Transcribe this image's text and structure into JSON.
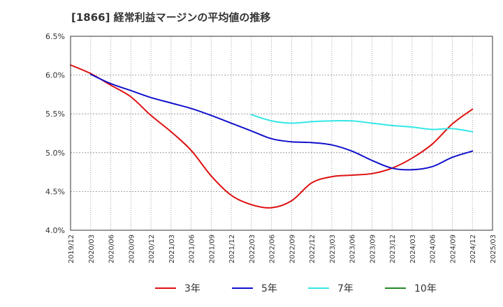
{
  "chart_data": {
    "type": "line",
    "title": "[1866]  経常利益マージンの平均値の推移",
    "xlabel": "",
    "ylabel": "",
    "ylim": [
      4.0,
      6.5
    ],
    "y_ticks": [
      "6.5%",
      "6.0%",
      "5.5%",
      "5.0%",
      "4.5%",
      "4.0%"
    ],
    "x_ticks": [
      "2019/12",
      "2020/03",
      "2020/06",
      "2020/09",
      "2020/12",
      "2021/03",
      "2021/06",
      "2021/09",
      "2021/12",
      "2022/03",
      "2022/06",
      "2022/09",
      "2022/12",
      "2023/03",
      "2023/06",
      "2023/09",
      "2023/12",
      "2024/03",
      "2024/06",
      "2024/09",
      "2024/12",
      "2025/03"
    ],
    "grid": true,
    "legend_position": "bottom",
    "series": [
      {
        "name": "3年",
        "color": "#dd1111",
        "points": [
          [
            "2019/12",
            6.13
          ],
          [
            "2020/03",
            6.02
          ],
          [
            "2020/06",
            5.87
          ],
          [
            "2020/09",
            5.72
          ],
          [
            "2020/12",
            5.48
          ],
          [
            "2021/03",
            5.27
          ],
          [
            "2021/06",
            5.03
          ],
          [
            "2021/09",
            4.7
          ],
          [
            "2021/12",
            4.45
          ],
          [
            "2022/03",
            4.33
          ],
          [
            "2022/06",
            4.29
          ],
          [
            "2022/09",
            4.38
          ],
          [
            "2022/12",
            4.61
          ],
          [
            "2023/03",
            4.69
          ],
          [
            "2023/06",
            4.71
          ],
          [
            "2023/09",
            4.73
          ],
          [
            "2023/12",
            4.8
          ],
          [
            "2024/03",
            4.93
          ],
          [
            "2024/06",
            5.11
          ],
          [
            "2024/09",
            5.37
          ],
          [
            "2024/12",
            5.56
          ]
        ]
      },
      {
        "name": "5年",
        "color": "#1111cc",
        "points": [
          [
            "2020/03",
            6.01
          ],
          [
            "2020/06",
            5.89
          ],
          [
            "2020/09",
            5.8
          ],
          [
            "2020/12",
            5.71
          ],
          [
            "2021/03",
            5.64
          ],
          [
            "2021/06",
            5.57
          ],
          [
            "2021/09",
            5.48
          ],
          [
            "2021/12",
            5.38
          ],
          [
            "2022/03",
            5.28
          ],
          [
            "2022/06",
            5.18
          ],
          [
            "2022/09",
            5.14
          ],
          [
            "2022/12",
            5.13
          ],
          [
            "2023/03",
            5.1
          ],
          [
            "2023/06",
            5.02
          ],
          [
            "2023/09",
            4.9
          ],
          [
            "2023/12",
            4.8
          ],
          [
            "2024/03",
            4.78
          ],
          [
            "2024/06",
            4.82
          ],
          [
            "2024/09",
            4.94
          ],
          [
            "2024/12",
            5.02
          ]
        ]
      },
      {
        "name": "7年",
        "color": "#33e6e6",
        "points": [
          [
            "2022/03",
            5.49
          ],
          [
            "2022/06",
            5.41
          ],
          [
            "2022/09",
            5.38
          ],
          [
            "2022/12",
            5.4
          ],
          [
            "2023/03",
            5.41
          ],
          [
            "2023/06",
            5.41
          ],
          [
            "2023/09",
            5.38
          ],
          [
            "2023/12",
            5.35
          ],
          [
            "2024/03",
            5.33
          ],
          [
            "2024/06",
            5.3
          ],
          [
            "2024/09",
            5.31
          ],
          [
            "2024/12",
            5.27
          ]
        ]
      },
      {
        "name": "10年",
        "color": "#228822",
        "points": []
      }
    ]
  }
}
